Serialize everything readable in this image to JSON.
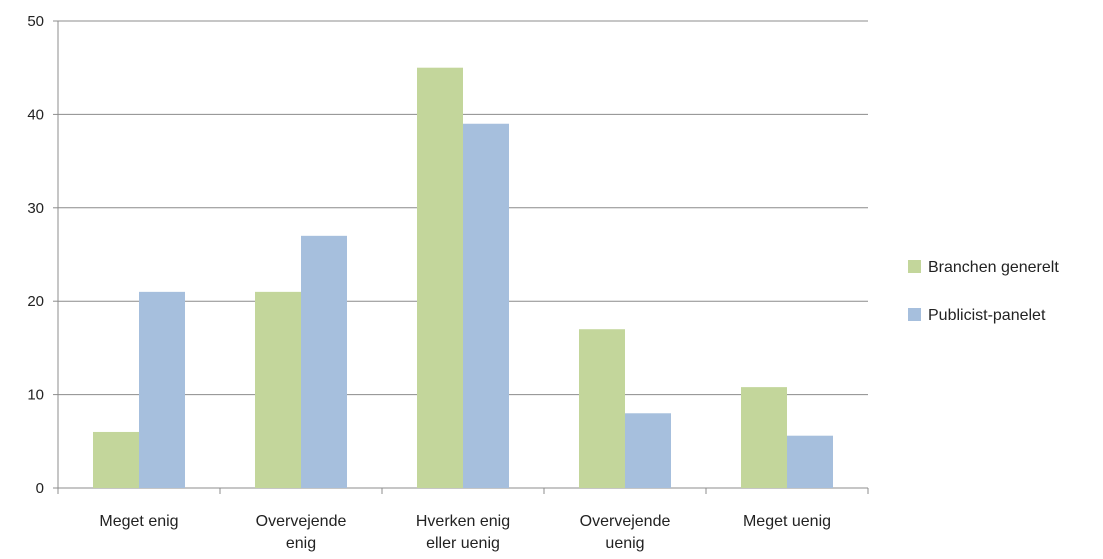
{
  "chart_data": {
    "type": "bar",
    "title": "",
    "xlabel": "",
    "ylabel": "",
    "ylim": [
      0,
      50
    ],
    "yticks": [
      0,
      10,
      20,
      30,
      40,
      50
    ],
    "grid": true,
    "legend_position": "right",
    "categories": [
      [
        "Meget enig"
      ],
      [
        "Overvejende",
        "enig"
      ],
      [
        "Hverken enig",
        "eller uenig"
      ],
      [
        "Overvejende",
        "uenig"
      ],
      [
        "Meget uenig"
      ]
    ],
    "series": [
      {
        "name": "Branchen generelt",
        "color": "#c3d69b",
        "values": [
          6,
          21,
          45,
          17,
          10.8
        ]
      },
      {
        "name": "Publicist-panelet",
        "color": "#a6bfdd",
        "values": [
          21,
          27,
          39,
          8,
          5.6
        ]
      }
    ]
  }
}
